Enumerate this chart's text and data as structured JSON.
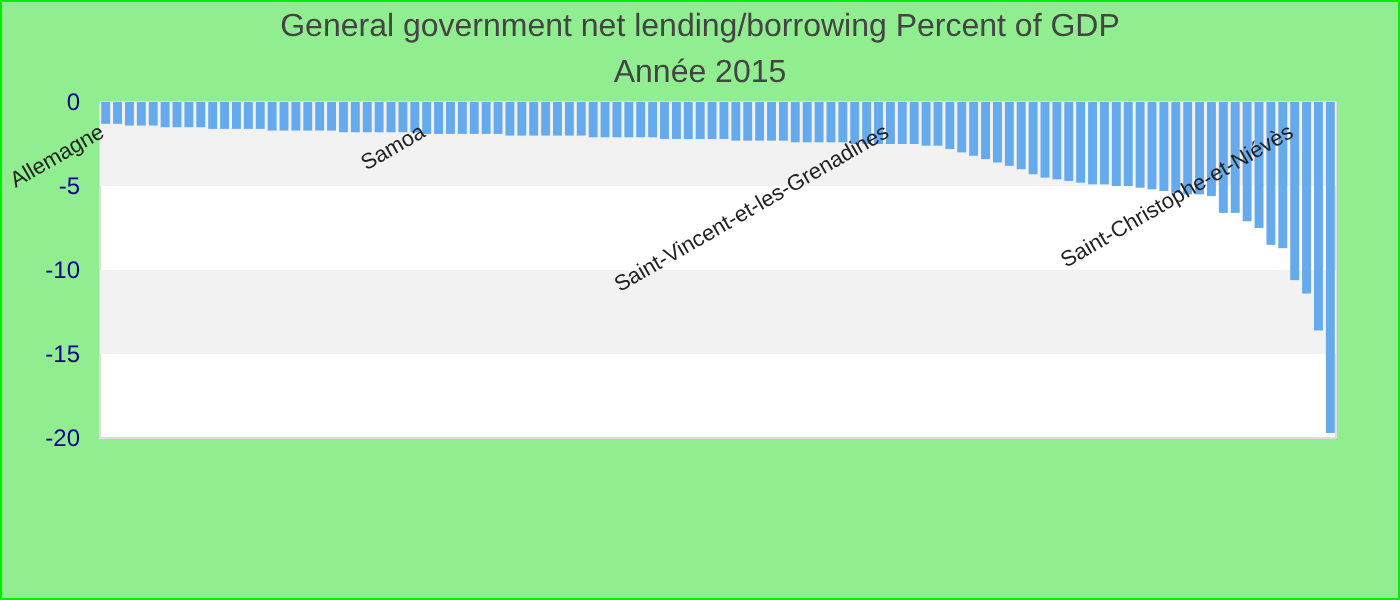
{
  "chart_data": {
    "type": "bar",
    "title": "General government net lending/borrowing  Percent of GDP",
    "subtitle": "Année 2015",
    "categories": [
      "Allemagne",
      null,
      null,
      null,
      null,
      null,
      null,
      null,
      null,
      null,
      null,
      null,
      null,
      null,
      null,
      null,
      null,
      null,
      null,
      null,
      null,
      null,
      null,
      null,
      null,
      null,
      null,
      "Samoa",
      null,
      null,
      null,
      null,
      null,
      null,
      null,
      null,
      null,
      null,
      null,
      null,
      null,
      null,
      null,
      null,
      null,
      null,
      null,
      null,
      null,
      null,
      null,
      null,
      null,
      null,
      null,
      null,
      null,
      null,
      null,
      null,
      null,
      null,
      null,
      null,
      null,
      null,
      "Saint-Vincent-et-les-Grenadines",
      null,
      null,
      null,
      null,
      null,
      null,
      null,
      null,
      null,
      null,
      null,
      null,
      null,
      null,
      null,
      null,
      null,
      null,
      null,
      null,
      null,
      null,
      null,
      null,
      null,
      null,
      null,
      null,
      null,
      null,
      null,
      null,
      null,
      "Saint-Christophe-et-Niévès",
      null,
      null,
      null
    ],
    "values": [
      -1.3,
      -1.3,
      -1.4,
      -1.4,
      -1.4,
      -1.5,
      -1.5,
      -1.5,
      -1.5,
      -1.6,
      -1.6,
      -1.6,
      -1.6,
      -1.6,
      -1.7,
      -1.7,
      -1.7,
      -1.7,
      -1.7,
      -1.7,
      -1.8,
      -1.8,
      -1.8,
      -1.8,
      -1.8,
      -1.8,
      -1.8,
      -1.9,
      -1.9,
      -1.9,
      -1.9,
      -1.9,
      -1.9,
      -1.9,
      -2.0,
      -2.0,
      -2.0,
      -2.0,
      -2.0,
      -2.0,
      -2.0,
      -2.1,
      -2.1,
      -2.1,
      -2.1,
      -2.1,
      -2.1,
      -2.2,
      -2.2,
      -2.2,
      -2.2,
      -2.2,
      -2.2,
      -2.3,
      -2.3,
      -2.3,
      -2.3,
      -2.3,
      -2.4,
      -2.4,
      -2.4,
      -2.4,
      -2.4,
      -2.5,
      -2.5,
      -2.5,
      -2.5,
      -2.5,
      -2.5,
      -2.6,
      -2.6,
      -2.8,
      -3.0,
      -3.2,
      -3.4,
      -3.6,
      -3.8,
      -4.0,
      -4.3,
      -4.5,
      -4.6,
      -4.7,
      -4.8,
      -4.9,
      -4.9,
      -5.0,
      -5.0,
      -5.1,
      -5.2,
      -5.3,
      -5.4,
      -5.5,
      -5.5,
      -5.6,
      -6.6,
      -6.6,
      -7.1,
      -7.5,
      -8.5,
      -8.7,
      -10.6,
      -11.4,
      -13.6,
      -19.7
    ],
    "color": "#66aaee",
    "ylim": [
      -20,
      0
    ],
    "yticks": [
      0,
      -5,
      -10,
      -15,
      -20
    ]
  }
}
